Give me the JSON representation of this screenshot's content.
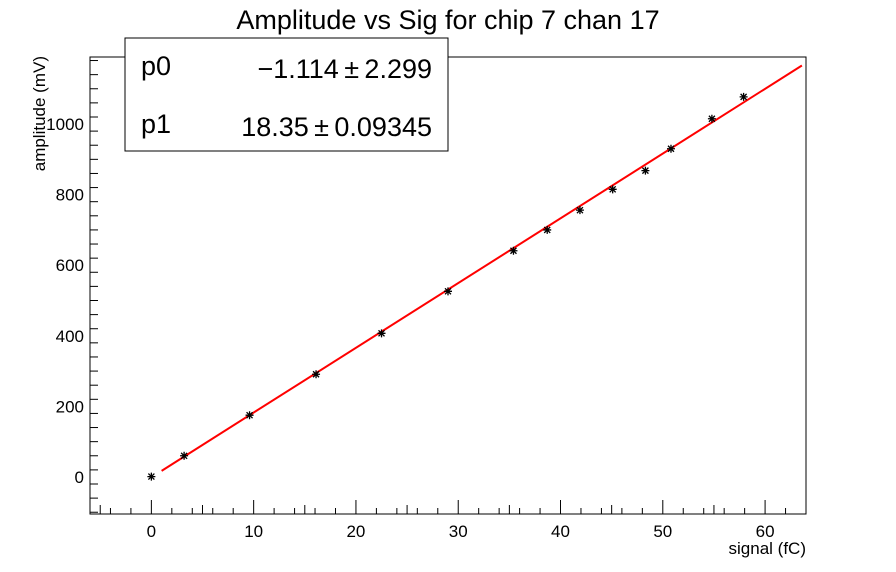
{
  "chart_data": {
    "type": "scatter",
    "title": "Amplitude vs Sig for chip 7 chan 17",
    "xlabel": "signal (fC)",
    "ylabel": "amplitude (mV)",
    "xlim": [
      -6,
      64
    ],
    "ylim": [
      -105,
      1190
    ],
    "x_ticks": [
      0,
      10,
      20,
      30,
      40,
      50,
      60
    ],
    "y_ticks": [
      0,
      200,
      400,
      600,
      800,
      1000
    ],
    "grid": false,
    "series": [
      {
        "marker": "star",
        "color": "#000000",
        "points": [
          {
            "x": 0.0,
            "y": 1
          },
          {
            "x": 3.2,
            "y": 60
          },
          {
            "x": 9.6,
            "y": 175
          },
          {
            "x": 16.1,
            "y": 291
          },
          {
            "x": 22.5,
            "y": 407
          },
          {
            "x": 29.0,
            "y": 526
          },
          {
            "x": 35.4,
            "y": 641
          },
          {
            "x": 38.7,
            "y": 700
          },
          {
            "x": 41.9,
            "y": 756
          },
          {
            "x": 45.1,
            "y": 815
          },
          {
            "x": 48.3,
            "y": 868
          },
          {
            "x": 50.8,
            "y": 930
          },
          {
            "x": 54.8,
            "y": 1015
          },
          {
            "x": 57.9,
            "y": 1077
          }
        ]
      }
    ],
    "fit": {
      "function": "pol1",
      "color": "#ff0000",
      "x_range": [
        1.0,
        63.6
      ],
      "p0": -1.114,
      "p1": 18.35
    },
    "stats_box": {
      "position": "top-left",
      "rows": [
        {
          "name": "p0",
          "value": "−1.114 ± 2.299"
        },
        {
          "name": "p1",
          "value": "18.35 ± 0.09345"
        }
      ]
    }
  }
}
